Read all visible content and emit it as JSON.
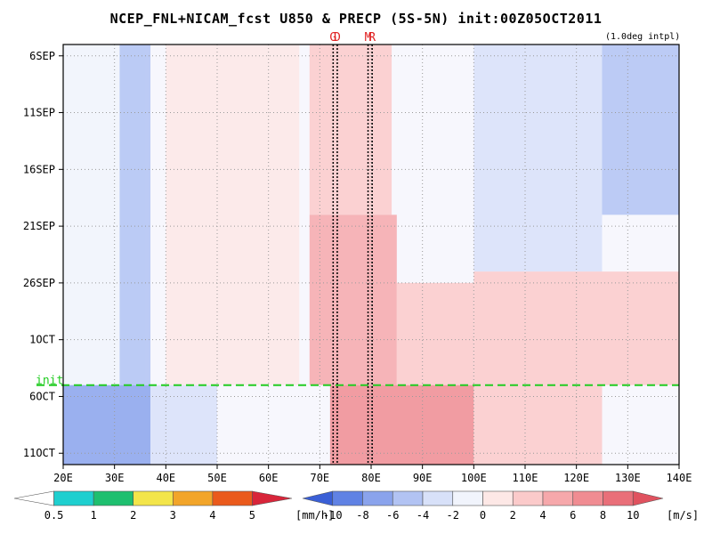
{
  "title": "NCEP_FNL+NICAM_fcst U850 & PRECP (5S-5N) init:00Z05OCT2011",
  "note": "(1.0deg intpl)",
  "markers": [
    {
      "label": "G",
      "lon": 72.6
    },
    {
      "label": "D",
      "lon": 73.4
    },
    {
      "label": "M",
      "lon": 79.4
    },
    {
      "label": "R",
      "lon": 80.2
    }
  ],
  "init_label": "init",
  "chart_data": {
    "type": "heatmap",
    "xlabel": "",
    "ylabel": "",
    "x_ticks": [
      "20E",
      "30E",
      "40E",
      "50E",
      "60E",
      "70E",
      "80E",
      "90E",
      "100E",
      "110E",
      "120E",
      "130E",
      "140E"
    ],
    "xlim": [
      20,
      140
    ],
    "y_ticks": [
      "6SEP",
      "11SEP",
      "16SEP",
      "21SEP",
      "26SEP",
      "1OCT",
      "6OCT",
      "11OCT"
    ],
    "y_tick_dates": [
      "2011-09-06",
      "2011-09-11",
      "2011-09-16",
      "2011-09-21",
      "2011-09-26",
      "2011-10-01",
      "2011-10-06",
      "2011-10-11"
    ],
    "ylim": [
      "2011-09-05",
      "2011-10-12"
    ],
    "init_time": "2011-10-05",
    "grid": true,
    "u850_colorbar": {
      "labels": [
        "-10",
        "-8",
        "-6",
        "-4",
        "-2",
        "0",
        "2",
        "4",
        "6",
        "8",
        "10"
      ],
      "unit": "[m/s]",
      "colors": [
        "#3a5fd6",
        "#6082e4",
        "#8aa3ec",
        "#b2c3f3",
        "#d8e1f9",
        "#f1f4fc",
        "#fde8e6",
        "#fbcaca",
        "#f6a8ab",
        "#f08c92",
        "#e96f79",
        "#e0525f"
      ]
    },
    "precip_colorbar": {
      "labels": [
        "0.5",
        "1",
        "2",
        "3",
        "4",
        "5"
      ],
      "unit": "[mm/h]",
      "colors": [
        "#ffffff",
        "#1fcfcf",
        "#1fbf6f",
        "#f3e54a",
        "#f2a52a",
        "#ea5a1c",
        "#d8253a"
      ]
    },
    "u850_bands": [
      {
        "lon_min": 20,
        "lon_max": 36,
        "t_start": "2011-09-05",
        "t_end": "2011-10-05",
        "u": -2
      },
      {
        "lon_min": 31,
        "lon_max": 37,
        "t_start": "2011-09-05",
        "t_end": "2011-10-05",
        "u": -6
      },
      {
        "lon_min": 20,
        "lon_max": 37,
        "t_start": "2011-10-05",
        "t_end": "2011-10-12",
        "u": -8
      },
      {
        "lon_min": 37,
        "lon_max": 50,
        "t_start": "2011-10-05",
        "t_end": "2011-10-12",
        "u": -4
      },
      {
        "lon_min": 68,
        "lon_max": 84,
        "t_start": "2011-09-05",
        "t_end": "2011-09-20",
        "u": 3
      },
      {
        "lon_min": 68,
        "lon_max": 85,
        "t_start": "2011-09-20",
        "t_end": "2011-10-05",
        "u": 5
      },
      {
        "lon_min": 85,
        "lon_max": 100,
        "t_start": "2011-09-26",
        "t_end": "2011-10-05",
        "u": 2
      },
      {
        "lon_min": 72,
        "lon_max": 100,
        "t_start": "2011-10-05",
        "t_end": "2011-10-12",
        "u": 6
      },
      {
        "lon_min": 100,
        "lon_max": 125,
        "t_start": "2011-10-05",
        "t_end": "2011-10-12",
        "u": 2
      },
      {
        "lon_min": 40,
        "lon_max": 66,
        "t_start": "2011-09-05",
        "t_end": "2011-10-05",
        "u": 0
      },
      {
        "lon_min": 100,
        "lon_max": 125,
        "t_start": "2011-09-05",
        "t_end": "2011-09-25",
        "u": -3
      },
      {
        "lon_min": 125,
        "lon_max": 140,
        "t_start": "2011-09-05",
        "t_end": "2011-09-20",
        "u": -6
      },
      {
        "lon_min": 100,
        "lon_max": 140,
        "t_start": "2011-09-25",
        "t_end": "2011-10-05",
        "u": 2
      }
    ]
  }
}
